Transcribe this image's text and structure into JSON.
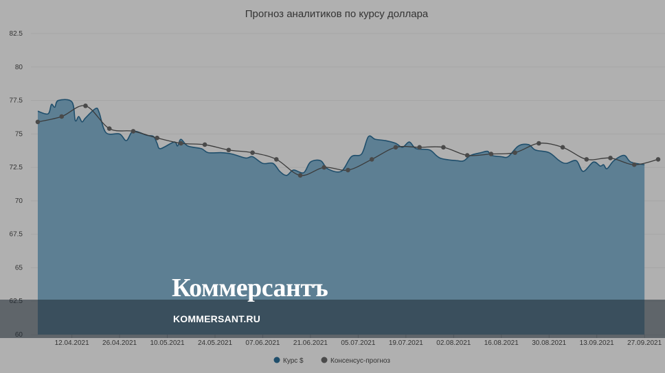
{
  "chart_data": {
    "type": "area",
    "title": "Прогноз аналитиков по курсу доллара",
    "ylim": [
      60,
      82.5
    ],
    "y_ticks": [
      "82.5",
      "80",
      "77.5",
      "75",
      "72.5",
      "70",
      "67.5",
      "65",
      "62.5",
      "60"
    ],
    "x_ticks": [
      "12.04.2021",
      "26.04.2021",
      "10.05.2021",
      "24.05.2021",
      "07.06.2021",
      "21.06.2021",
      "05.07.2021",
      "19.07.2021",
      "02.08.2021",
      "16.08.2021",
      "30.08.2021",
      "13.09.2021",
      "27.09.2021"
    ],
    "x_range": [
      "2021-04-02",
      "2021-10-01"
    ],
    "grid": true,
    "legend_position": "bottom-center",
    "series": [
      {
        "name": "Курс $",
        "color": "#5d7f93",
        "line_color": "#1f4e6b",
        "points": [
          [
            "2021-04-02",
            76.7
          ],
          [
            "2021-04-05",
            76.5
          ],
          [
            "2021-04-06",
            77.2
          ],
          [
            "2021-04-07",
            77.0
          ],
          [
            "2021-04-08",
            77.5
          ],
          [
            "2021-04-12",
            77.4
          ],
          [
            "2021-04-13",
            76.0
          ],
          [
            "2021-04-14",
            76.3
          ],
          [
            "2021-04-15",
            75.9
          ],
          [
            "2021-04-16",
            76.2
          ],
          [
            "2021-04-19",
            76.9
          ],
          [
            "2021-04-20",
            76.6
          ],
          [
            "2021-04-22",
            75.1
          ],
          [
            "2021-04-26",
            75.0
          ],
          [
            "2021-04-28",
            74.5
          ],
          [
            "2021-04-30",
            75.2
          ],
          [
            "2021-05-04",
            74.9
          ],
          [
            "2021-05-06",
            74.8
          ],
          [
            "2021-05-07",
            74.3
          ],
          [
            "2021-05-08",
            73.9
          ],
          [
            "2021-05-12",
            74.4
          ],
          [
            "2021-05-13",
            74.1
          ],
          [
            "2021-05-14",
            74.6
          ],
          [
            "2021-05-16",
            74.1
          ],
          [
            "2021-05-20",
            73.9
          ],
          [
            "2021-05-22",
            73.6
          ],
          [
            "2021-05-26",
            73.6
          ],
          [
            "2021-05-29",
            73.5
          ],
          [
            "2021-06-02",
            73.2
          ],
          [
            "2021-06-04",
            73.3
          ],
          [
            "2021-06-07",
            72.8
          ],
          [
            "2021-06-10",
            72.8
          ],
          [
            "2021-06-12",
            72.2
          ],
          [
            "2021-06-14",
            71.9
          ],
          [
            "2021-06-16",
            72.3
          ],
          [
            "2021-06-19",
            72.1
          ],
          [
            "2021-06-21",
            72.9
          ],
          [
            "2021-06-24",
            73.0
          ],
          [
            "2021-06-26",
            72.4
          ],
          [
            "2021-06-30",
            72.2
          ],
          [
            "2021-07-03",
            73.3
          ],
          [
            "2021-07-06",
            73.5
          ],
          [
            "2021-07-08",
            74.8
          ],
          [
            "2021-07-10",
            74.6
          ],
          [
            "2021-07-13",
            74.5
          ],
          [
            "2021-07-16",
            74.3
          ],
          [
            "2021-07-18",
            74.0
          ],
          [
            "2021-07-20",
            74.4
          ],
          [
            "2021-07-22",
            73.9
          ],
          [
            "2021-07-26",
            73.8
          ],
          [
            "2021-07-29",
            73.2
          ],
          [
            "2021-08-03",
            73.0
          ],
          [
            "2021-08-05",
            73.0
          ],
          [
            "2021-08-07",
            73.4
          ],
          [
            "2021-08-10",
            73.6
          ],
          [
            "2021-08-12",
            73.7
          ],
          [
            "2021-08-13",
            73.4
          ],
          [
            "2021-08-16",
            73.3
          ],
          [
            "2021-08-18",
            73.3
          ],
          [
            "2021-08-21",
            74.1
          ],
          [
            "2021-08-24",
            74.2
          ],
          [
            "2021-08-26",
            73.8
          ],
          [
            "2021-08-30",
            73.6
          ],
          [
            "2021-09-02",
            73.0
          ],
          [
            "2021-09-04",
            72.8
          ],
          [
            "2021-09-07",
            73.0
          ],
          [
            "2021-09-09",
            72.2
          ],
          [
            "2021-09-12",
            72.9
          ],
          [
            "2021-09-14",
            72.6
          ],
          [
            "2021-09-15",
            72.7
          ],
          [
            "2021-09-16",
            72.4
          ],
          [
            "2021-09-18",
            73.0
          ],
          [
            "2021-09-21",
            73.4
          ],
          [
            "2021-09-23",
            72.9
          ],
          [
            "2021-09-27",
            72.7
          ]
        ]
      },
      {
        "name": "Консенсус-прогноз",
        "color": "#4a4a4a",
        "points": [
          [
            "2021-04-02",
            75.9
          ],
          [
            "2021-04-09",
            76.3
          ],
          [
            "2021-04-16",
            77.1
          ],
          [
            "2021-04-23",
            75.4
          ],
          [
            "2021-04-30",
            75.2
          ],
          [
            "2021-05-07",
            74.7
          ],
          [
            "2021-05-14",
            74.3
          ],
          [
            "2021-05-21",
            74.2
          ],
          [
            "2021-05-28",
            73.8
          ],
          [
            "2021-06-04",
            73.6
          ],
          [
            "2021-06-11",
            73.1
          ],
          [
            "2021-06-18",
            71.9
          ],
          [
            "2021-06-25",
            72.5
          ],
          [
            "2021-07-02",
            72.3
          ],
          [
            "2021-07-09",
            73.1
          ],
          [
            "2021-07-16",
            74.0
          ],
          [
            "2021-07-23",
            74.0
          ],
          [
            "2021-07-30",
            74.0
          ],
          [
            "2021-08-06",
            73.4
          ],
          [
            "2021-08-13",
            73.5
          ],
          [
            "2021-08-20",
            73.6
          ],
          [
            "2021-08-27",
            74.3
          ],
          [
            "2021-09-03",
            74.0
          ],
          [
            "2021-09-10",
            73.1
          ],
          [
            "2021-09-17",
            73.2
          ],
          [
            "2021-09-24",
            72.7
          ],
          [
            "2021-10-01",
            73.1
          ]
        ]
      }
    ]
  },
  "watermark": {
    "logo": "Коммерсантъ",
    "site": "KOMMERSANT.RU"
  }
}
